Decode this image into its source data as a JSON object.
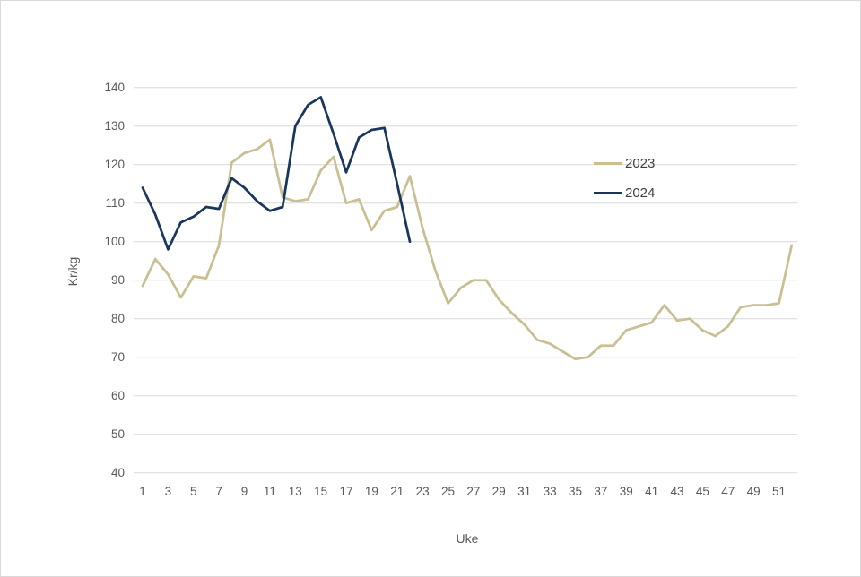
{
  "chart_data": {
    "type": "line",
    "title": "",
    "xlabel": "Uke",
    "ylabel": "Kr/kg",
    "ylim": [
      40,
      140
    ],
    "y_ticks": [
      40,
      50,
      60,
      70,
      80,
      90,
      100,
      110,
      120,
      130,
      140
    ],
    "x_ticks": [
      1,
      3,
      5,
      7,
      9,
      11,
      13,
      15,
      17,
      19,
      21,
      23,
      25,
      27,
      29,
      31,
      33,
      35,
      37,
      39,
      41,
      43,
      45,
      47,
      49,
      51
    ],
    "x": [
      1,
      2,
      3,
      4,
      5,
      6,
      7,
      8,
      9,
      10,
      11,
      12,
      13,
      14,
      15,
      16,
      17,
      18,
      19,
      20,
      21,
      22,
      23,
      24,
      25,
      26,
      27,
      28,
      29,
      30,
      31,
      32,
      33,
      34,
      35,
      36,
      37,
      38,
      39,
      40,
      41,
      42,
      43,
      44,
      45,
      46,
      47,
      48,
      49,
      50,
      51,
      52
    ],
    "grid": "horizontal",
    "legend_position": "right",
    "series": [
      {
        "name": "2023",
        "color": "#c9bf92",
        "values": [
          88.5,
          95.5,
          91.5,
          85.5,
          91,
          90.5,
          99,
          120.5,
          123,
          124,
          126.5,
          111.5,
          110.5,
          111,
          118.5,
          122,
          110,
          111,
          103,
          108,
          109,
          117,
          103.5,
          92.5,
          84,
          88,
          90,
          90,
          85,
          81.5,
          78.5,
          74.5,
          73.5,
          71.5,
          69.5,
          70,
          73,
          73,
          77,
          78,
          79,
          83.5,
          79.5,
          80,
          77,
          75.5,
          78,
          83,
          83.5,
          83.5,
          84,
          99
        ]
      },
      {
        "name": "2024",
        "color": "#1b365d",
        "values": [
          114,
          107,
          98,
          105,
          106.5,
          109,
          108.5,
          116.5,
          114,
          110.5,
          108,
          109,
          130,
          135.5,
          137.5,
          128,
          118,
          127,
          129,
          129.5,
          115,
          100
        ]
      }
    ]
  },
  "styles": {
    "gridline_color": "#d9d9d9",
    "tick_color": "#595959",
    "legend_text_color": "#404040",
    "background": "#ffffff"
  }
}
